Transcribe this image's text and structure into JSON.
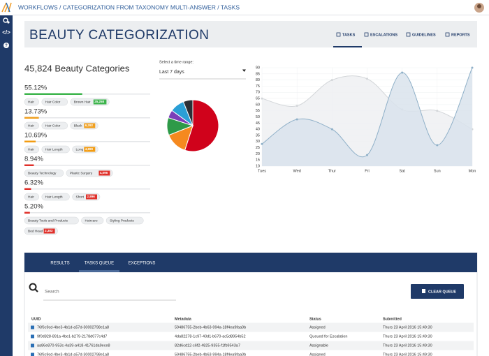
{
  "nav": {
    "breadcrumb": "WORKFLOWS / CATEGORIZATION FROM TAXONOMY MULTI-ANSWER / TASKS"
  },
  "header": {
    "title": "BEAUTY CATEGORIZATION",
    "tabs": [
      "TASKS",
      "ESCALATIONS",
      "GUIDELINES",
      "REPORTS"
    ]
  },
  "summary": {
    "title": "45,824 Beauty Categories",
    "items": [
      {
        "value": 55.12,
        "value_label": "55.12%",
        "tags": [
          "Hair",
          "Hair Color",
          "Brown Hair"
        ],
        "count": "25,258",
        "color": "#3cb44b"
      },
      {
        "value": 13.73,
        "value_label": "13.73%",
        "tags": [
          "Hair",
          "Hair Color",
          "Black"
        ],
        "count": "6,292",
        "color": "#f0a020"
      },
      {
        "value": 10.69,
        "value_label": "10.69%",
        "tags": [
          "Hair",
          "Hair Length",
          "Long"
        ],
        "count": "4,899",
        "color": "#f39c12"
      },
      {
        "value": 8.94,
        "value_label": "8.94%",
        "tags": [
          "Beauty Technology",
          "Plastic Surgery"
        ],
        "count": "4,096",
        "color": "#e0302a"
      },
      {
        "value": 6.32,
        "value_label": "6.32%",
        "tags": [
          "Hair",
          "Hair Length",
          "Short"
        ],
        "count": "2,896",
        "color": "#e0302a"
      },
      {
        "value": 5.2,
        "value_label": "5.20%",
        "tags": [
          "Beauty Tools and Products",
          "Haircare",
          "Styling Products",
          "Bed Head"
        ],
        "count": "2,383",
        "color": "#e0302a"
      }
    ]
  },
  "time_range": {
    "label": "Select a time range:",
    "value": "Last 7 days"
  },
  "chart_data": [
    {
      "type": "pie",
      "values": [
        55,
        14,
        11,
        5,
        9,
        6
      ],
      "colors": [
        "#d0021b",
        "#f5891f",
        "#2e9a48",
        "#7b3fb8",
        "#2a9fd6",
        "#2b2f36"
      ]
    },
    {
      "type": "line",
      "categories": [
        "Tues",
        "Wed",
        "Thur",
        "Fri",
        "Sat",
        "Sun",
        "Mon"
      ],
      "series": [
        {
          "values": [
            65,
            59,
            80,
            81,
            56,
            55,
            40
          ],
          "color": "#d3d6d9",
          "fill": "#eef0f2"
        },
        {
          "values": [
            28,
            48,
            40,
            19,
            86,
            27,
            90
          ],
          "color": "#8fb0c8",
          "fill": "#d9e3ec"
        }
      ],
      "ylim": [
        10,
        90
      ],
      "yticks": [
        10,
        15,
        20,
        25,
        30,
        35,
        40,
        45,
        50,
        55,
        60,
        65,
        70,
        75,
        80,
        85,
        90
      ],
      "grid": true
    }
  ],
  "queue": {
    "tabs": [
      "RESULTS",
      "TASKS QUEUE",
      "EXCEPTIONS"
    ],
    "search": "Search",
    "button": "CLEAR QUEUE",
    "columns": [
      "UUID",
      "Metadata",
      "Status",
      "Submitted"
    ],
    "rows": [
      [
        "76f6c9cd-4be3-4b1d-a57d-30002798e1a8",
        "59486755-2beb-4b63-994a-18f4ea9faa0b",
        "Assigned",
        "Thurs 23 April 2016 15:49:30"
      ],
      [
        "9f0d828-891a-4be1-b279-2178d077c4d7",
        "4da82278-1c97-40d1-b670-ac5d8954b52",
        "Queued for Escalation",
        "Thurs 23 April 2016 15:49:30"
      ],
      [
        "aa86e870-953c-4a39-a418-41761da9ece8",
        "82d6cd12-c6f2-4825-9355-f1fb9543a7",
        "Assignable",
        "Thurs 23 April 2016 15:49:30"
      ],
      [
        "76f6c9cd-4be3-4b1d-a57d-30002798e1a8",
        "59486755-2beb-4b63-994a-18f4ea9faa0b",
        "Assigned",
        "Thurs 23 April 2016 15:49:30"
      ]
    ]
  }
}
